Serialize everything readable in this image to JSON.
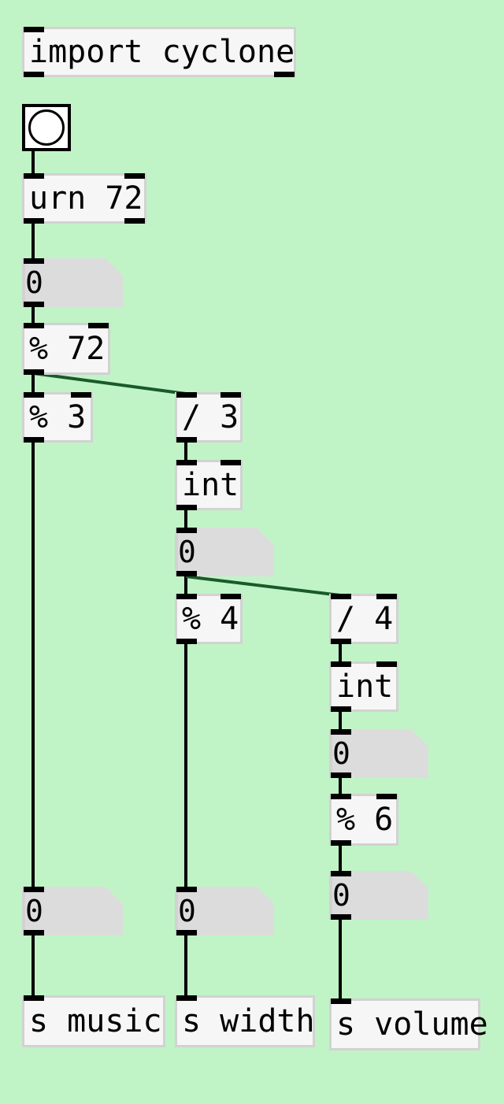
{
  "patch": {
    "objects": [
      {
        "id": "import",
        "label": "import cyclone"
      },
      {
        "id": "urn",
        "label": "urn 72"
      },
      {
        "id": "mod72",
        "label": "% 72"
      },
      {
        "id": "mod3",
        "label": "% 3"
      },
      {
        "id": "div3",
        "label": "/ 3"
      },
      {
        "id": "int1",
        "label": "int"
      },
      {
        "id": "mod4",
        "label": "% 4"
      },
      {
        "id": "div4",
        "label": "/ 4"
      },
      {
        "id": "int2",
        "label": "int"
      },
      {
        "id": "mod6",
        "label": "% 6"
      },
      {
        "id": "send_music",
        "label": "s music"
      },
      {
        "id": "send_width",
        "label": "s width"
      },
      {
        "id": "send_volume",
        "label": "s volume"
      }
    ],
    "number_boxes": [
      {
        "id": "num_urn",
        "value": "0"
      },
      {
        "id": "num_int1",
        "value": "0"
      },
      {
        "id": "num_int2",
        "value": "0"
      },
      {
        "id": "num_mod6",
        "value": "0"
      },
      {
        "id": "num_music",
        "value": "0"
      },
      {
        "id": "num_width",
        "value": "0"
      }
    ],
    "bang": {
      "icon": "bang-circle-icon"
    },
    "colors": {
      "canvas": "#c0f4c6",
      "box": "#f6f6f6",
      "number": "#dcdcdc",
      "wire": "#000000"
    }
  }
}
